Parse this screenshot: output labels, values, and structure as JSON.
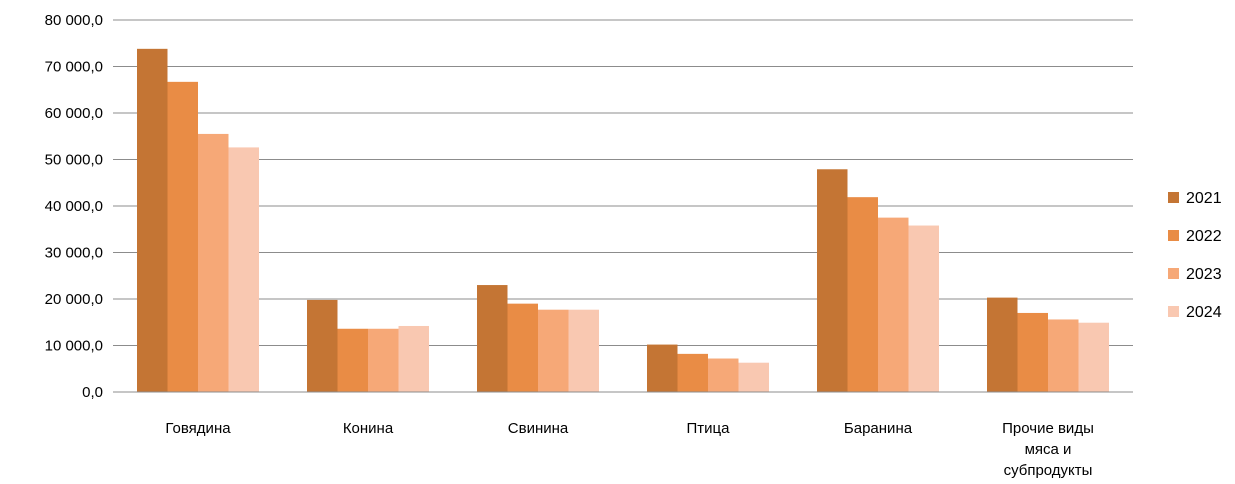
{
  "chart_data": {
    "type": "bar",
    "title": "",
    "xlabel": "",
    "ylabel": "",
    "ylim": [
      0,
      80000
    ],
    "y_ticks": [
      0,
      10000,
      20000,
      30000,
      40000,
      50000,
      60000,
      70000,
      80000
    ],
    "y_tick_labels": [
      "0,0",
      "10 000,0",
      "20 000,0",
      "30 000,0",
      "40 000,0",
      "50 000,0",
      "60 000,0",
      "70 000,0",
      "80 000,0"
    ],
    "grid": true,
    "legend_position": "right",
    "categories": [
      [
        "Говядина"
      ],
      [
        "Конина"
      ],
      [
        "Свинина"
      ],
      [
        "Птица"
      ],
      [
        "Баранина"
      ],
      [
        "Прочие виды",
        "мяса  и",
        "субпродукты"
      ]
    ],
    "series": [
      {
        "name": "2021",
        "color": "#c47534",
        "values": [
          73800,
          19800,
          23000,
          10200,
          47900,
          20300
        ]
      },
      {
        "name": "2022",
        "color": "#e98c45",
        "values": [
          66700,
          13600,
          19000,
          8200,
          41900,
          17000
        ]
      },
      {
        "name": "2023",
        "color": "#f6a877",
        "values": [
          55500,
          13600,
          17700,
          7200,
          37500,
          15600
        ]
      },
      {
        "name": "2024",
        "color": "#f9c8b1",
        "values": [
          52600,
          14200,
          17700,
          6300,
          35800,
          14900
        ]
      }
    ]
  }
}
